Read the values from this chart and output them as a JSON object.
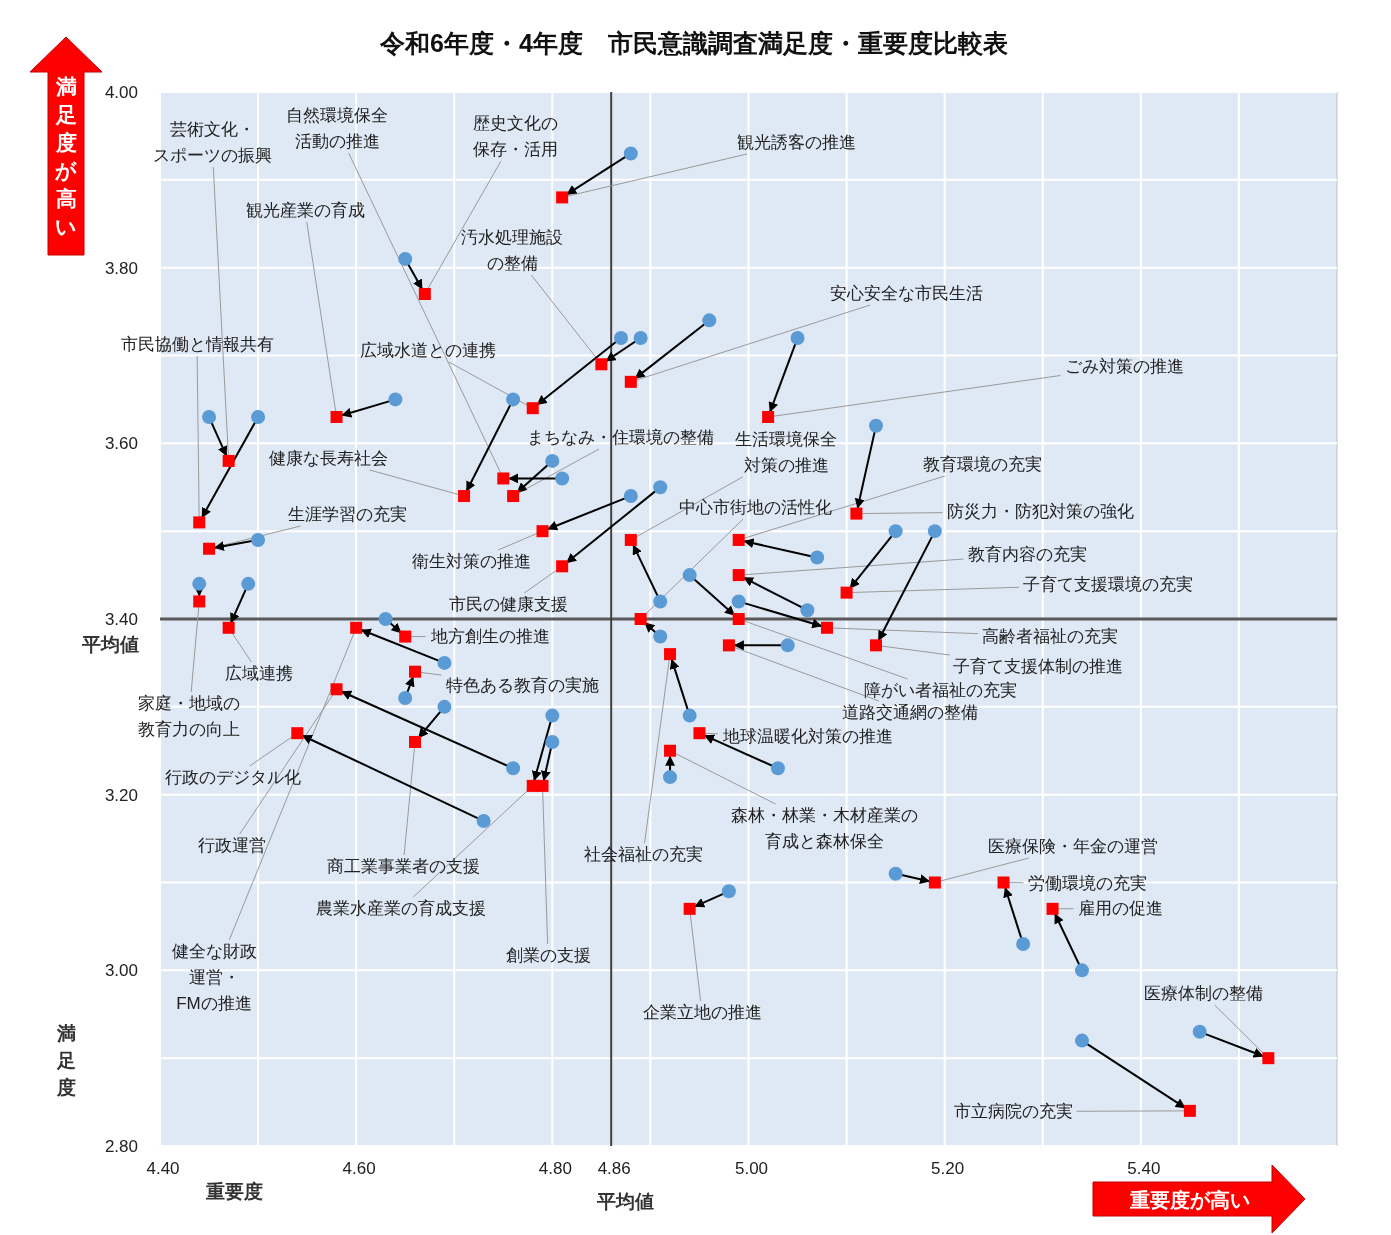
{
  "chart_data": {
    "type": "scatter",
    "title": "令和6年度・4年度　市民意識調査満足度・重要度比較表",
    "xlabel": "重要度",
    "ylabel": "満足度",
    "grid": true,
    "xlim": [
      4.4,
      5.6
    ],
    "ylim": [
      2.8,
      4.0
    ],
    "xticks": [
      {
        "value": 4.4,
        "label": "4.40"
      },
      {
        "value": 4.5,
        "label": null
      },
      {
        "value": 4.6,
        "label": "4.60"
      },
      {
        "value": 4.7,
        "label": null
      },
      {
        "value": 4.8,
        "label": "4.80"
      },
      {
        "value": 4.86,
        "label": "4.86"
      },
      {
        "value": 4.9,
        "label": null
      },
      {
        "value": 5.0,
        "label": "5.00"
      },
      {
        "value": 5.1,
        "label": null
      },
      {
        "value": 5.2,
        "label": "5.20"
      },
      {
        "value": 5.3,
        "label": null
      },
      {
        "value": 5.4,
        "label": "5.40"
      },
      {
        "value": 5.5,
        "label": null
      }
    ],
    "yticks": [
      {
        "value": 2.8,
        "label": "2.80"
      },
      {
        "value": 2.9,
        "label": null
      },
      {
        "value": 3.0,
        "label": "3.00"
      },
      {
        "value": 3.1,
        "label": null
      },
      {
        "value": 3.2,
        "label": "3.20"
      },
      {
        "value": 3.3,
        "label": null
      },
      {
        "value": 3.4,
        "label": "3.40"
      },
      {
        "value": 3.5,
        "label": null
      },
      {
        "value": 3.6,
        "label": "3.60"
      },
      {
        "value": 3.7,
        "label": null
      },
      {
        "value": 3.8,
        "label": "3.80"
      },
      {
        "value": 3.9,
        "label": null
      },
      {
        "value": 4.0,
        "label": "4.00"
      }
    ],
    "ref_lines": [
      {
        "axis": "y",
        "value": 3.4,
        "label": "平均値",
        "color": "#595959"
      },
      {
        "axis": "x",
        "value": 4.86,
        "label": "平均値",
        "color": "#404040"
      }
    ],
    "series": [
      {
        "color": "#5b9bd5",
        "marker": "circle",
        "x": [
          4.88,
          4.65,
          4.64,
          4.45,
          4.5,
          4.5,
          4.44,
          4.49,
          4.76,
          4.81,
          4.8,
          4.87,
          4.89,
          4.96,
          5.05,
          4.88,
          4.91,
          4.91,
          4.91,
          5.07,
          5.13,
          5.06,
          5.15,
          4.99,
          5.19,
          4.94,
          5.04,
          4.63,
          4.65,
          4.69,
          4.76,
          4.73,
          4.69,
          4.8,
          4.8,
          4.94,
          4.92,
          5.03,
          4.98,
          5.15,
          5.28,
          5.34,
          5.46,
          5.34
        ],
        "values": [
          3.93,
          3.81,
          3.65,
          3.63,
          3.63,
          3.49,
          3.44,
          3.44,
          3.65,
          3.56,
          3.58,
          3.72,
          3.72,
          3.74,
          3.72,
          3.54,
          3.55,
          3.42,
          3.38,
          3.47,
          3.62,
          3.41,
          3.5,
          3.42,
          3.5,
          3.45,
          3.37,
          3.4,
          3.31,
          3.35,
          3.23,
          3.17,
          3.3,
          3.29,
          3.26,
          3.29,
          3.22,
          3.23,
          3.09,
          3.11,
          3.03,
          3.0,
          2.93,
          2.92
        ]
      },
      {
        "color": "#ff0000",
        "marker": "square",
        "x": [
          4.81,
          4.67,
          4.58,
          4.47,
          4.44,
          4.45,
          4.44,
          4.47,
          4.71,
          4.75,
          4.76,
          4.78,
          4.85,
          4.88,
          5.02,
          4.79,
          4.81,
          4.88,
          4.89,
          4.99,
          5.11,
          4.99,
          5.1,
          5.08,
          5.13,
          4.99,
          4.98,
          4.65,
          4.66,
          4.6,
          4.58,
          4.54,
          4.66,
          4.78,
          4.79,
          4.92,
          4.92,
          4.95,
          4.94,
          5.19,
          5.26,
          5.31,
          5.53,
          5.45
        ],
        "values": [
          3.88,
          3.77,
          3.63,
          3.58,
          3.51,
          3.48,
          3.42,
          3.39,
          3.54,
          3.56,
          3.54,
          3.64,
          3.69,
          3.67,
          3.63,
          3.5,
          3.46,
          3.49,
          3.4,
          3.49,
          3.52,
          3.45,
          3.43,
          3.39,
          3.37,
          3.4,
          3.37,
          3.38,
          3.34,
          3.39,
          3.32,
          3.27,
          3.26,
          3.21,
          3.21,
          3.36,
          3.25,
          3.27,
          3.07,
          3.1,
          3.1,
          3.07,
          2.9,
          2.84
        ]
      }
    ],
    "annotations": [
      {
        "text": "観光誘客の推進",
        "x": 4.81,
        "y": 3.88
      },
      {
        "text": "歴史文化の保存・活用",
        "x": 4.67,
        "y": 3.77
      },
      {
        "text": "観光産業の育成",
        "x": 4.58,
        "y": 3.63
      },
      {
        "text": "芸術文化・スポーツの振興",
        "x": 4.47,
        "y": 3.58
      },
      {
        "text": "市民協働と情報共有",
        "x": 4.44,
        "y": 3.51
      },
      {
        "text": "生涯学習の充実",
        "x": 4.45,
        "y": 3.48
      },
      {
        "text": "家庭・地域の教育力の向上",
        "x": 4.44,
        "y": 3.42
      },
      {
        "text": "広域連携",
        "x": 4.47,
        "y": 3.39
      },
      {
        "text": "健康な長寿社会",
        "x": 4.71,
        "y": 3.54
      },
      {
        "text": "自然環境保全活動の推進",
        "x": 4.75,
        "y": 3.56
      },
      {
        "text": "まちなみ・住環境の整備",
        "x": 4.76,
        "y": 3.54
      },
      {
        "text": "広域水道との連携",
        "x": 4.78,
        "y": 3.64
      },
      {
        "text": "汚水処理施設の整備",
        "x": 4.85,
        "y": 3.69
      },
      {
        "text": "安心安全な市民生活",
        "x": 4.88,
        "y": 3.67
      },
      {
        "text": "ごみ対策の推進",
        "x": 5.02,
        "y": 3.63
      },
      {
        "text": "衛生対策の推進",
        "x": 4.79,
        "y": 3.5
      },
      {
        "text": "市民の健康支援",
        "x": 4.81,
        "y": 3.46
      },
      {
        "text": "生活環境保全対策の推進",
        "x": 4.88,
        "y": 3.49
      },
      {
        "text": "中心市街地の活性化",
        "x": 4.89,
        "y": 3.4
      },
      {
        "text": "教育環境の充実",
        "x": 4.99,
        "y": 3.49
      },
      {
        "text": "防災力・防犯対策の強化",
        "x": 5.11,
        "y": 3.52
      },
      {
        "text": "教育内容の充実",
        "x": 4.99,
        "y": 3.45
      },
      {
        "text": "子育て支援環境の充実",
        "x": 5.1,
        "y": 3.43
      },
      {
        "text": "高齢者福祉の充実",
        "x": 5.08,
        "y": 3.39
      },
      {
        "text": "子育て支援体制の推進",
        "x": 5.13,
        "y": 3.37
      },
      {
        "text": "障がい者福祉の充実",
        "x": 4.99,
        "y": 3.4
      },
      {
        "text": "道路交通網の整備",
        "x": 4.98,
        "y": 3.37
      },
      {
        "text": "地方創生の推進",
        "x": 4.65,
        "y": 3.38
      },
      {
        "text": "特色ある教育の実施",
        "x": 4.66,
        "y": 3.34
      },
      {
        "text": "健全な財政運営・FMの推進",
        "x": 4.6,
        "y": 3.39
      },
      {
        "text": "行政運営",
        "x": 4.58,
        "y": 3.32
      },
      {
        "text": "行政のデジタル化",
        "x": 4.54,
        "y": 3.27
      },
      {
        "text": "商工業事業者の支援",
        "x": 4.66,
        "y": 3.26
      },
      {
        "text": "農業水産業の育成支援",
        "x": 4.78,
        "y": 3.21
      },
      {
        "text": "創業の支援",
        "x": 4.79,
        "y": 3.21
      },
      {
        "text": "社会福祉の充実",
        "x": 4.92,
        "y": 3.36
      },
      {
        "text": "森林・林業・木材産業の育成と森林保全",
        "x": 4.92,
        "y": 3.25
      },
      {
        "text": "地球温暖化対策の推進",
        "x": 4.95,
        "y": 3.27
      },
      {
        "text": "企業立地の推進",
        "x": 4.94,
        "y": 3.07
      },
      {
        "text": "医療保険・年金の運営",
        "x": 5.19,
        "y": 3.1
      },
      {
        "text": "労働環境の充実",
        "x": 5.26,
        "y": 3.1
      },
      {
        "text": "雇用の促進",
        "x": 5.31,
        "y": 3.07
      },
      {
        "text": "医療体制の整備",
        "x": 5.53,
        "y": 2.9
      },
      {
        "text": "市立病院の充実",
        "x": 5.45,
        "y": 2.84
      },
      "満足度が高い",
      "重要度が高い"
    ]
  }
}
